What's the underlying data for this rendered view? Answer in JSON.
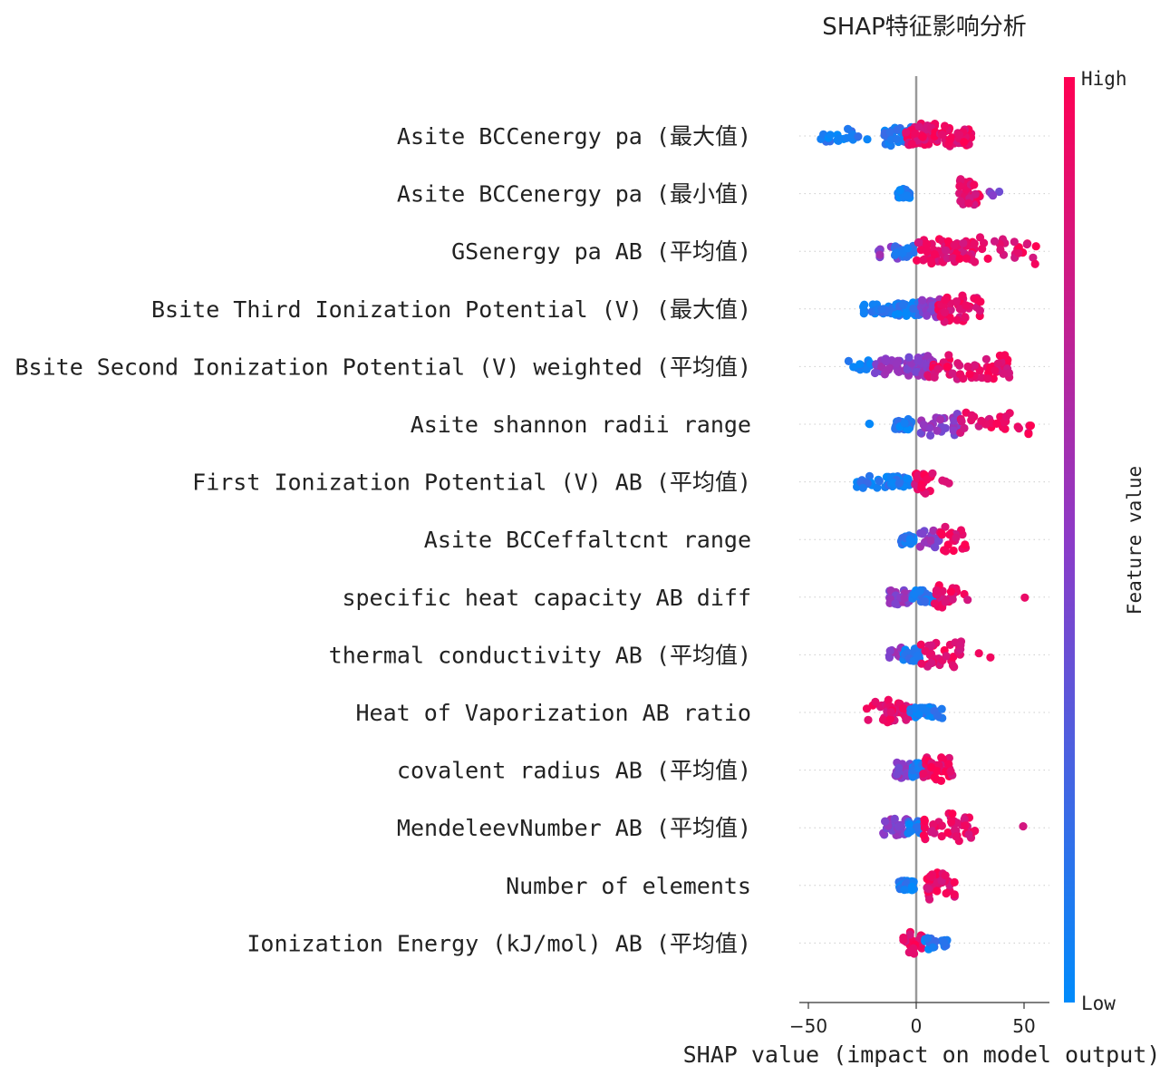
{
  "chart_data": {
    "type": "scatter",
    "subtype": "shap-beeswarm",
    "title": "SHAP特征影响分析",
    "xlabel": "SHAP value (impact on model output)",
    "xlim": [
      -52,
      61
    ],
    "xticks": [
      -50,
      0,
      50
    ],
    "xtick_labels": [
      "−50",
      "0",
      "50"
    ],
    "zero_line": true,
    "colorbar": {
      "label": "Feature value",
      "high_label": "High",
      "low_label": "Low",
      "low_color": "#008bfb",
      "high_color": "#ff0052"
    },
    "features": [
      {
        "name": "Asite BCCenergy pa (最大值)",
        "clusters": [
          [
            -47,
            -22,
            "low",
            0.35,
            20
          ],
          [
            -16,
            -1,
            "low",
            0.55,
            30
          ],
          [
            -5,
            10,
            "high",
            0.85,
            55
          ],
          [
            11,
            26,
            "high",
            0.8,
            40
          ]
        ]
      },
      {
        "name": "Asite BCCenergy pa (最小值)",
        "clusters": [
          [
            -9,
            -3,
            "low",
            0.1,
            24
          ],
          [
            20,
            30,
            "high",
            0.95,
            30
          ],
          [
            33,
            39,
            "mid",
            0.55,
            4
          ]
        ]
      },
      {
        "name": "GSenergy pa AB (平均值)",
        "clusters": [
          [
            -19,
            -8,
            "mid",
            0.45,
            10
          ],
          [
            -10,
            -1,
            "low",
            0.25,
            30
          ],
          [
            0,
            28,
            "high",
            0.8,
            70
          ],
          [
            28,
            56,
            "high",
            0.92,
            22
          ]
        ]
      },
      {
        "name": "Bsite Third Ionization Potential (V) (最大值)",
        "clusters": [
          [
            -26,
            -10,
            "low",
            0.12,
            30
          ],
          [
            -10,
            2,
            "low",
            0.35,
            50
          ],
          [
            2,
            12,
            "mid",
            0.6,
            30
          ],
          [
            10,
            30,
            "high",
            0.85,
            45
          ]
        ]
      },
      {
        "name": "Bsite Second Ionization Potential (V) weighted (平均值)",
        "clusters": [
          [
            -33,
            -20,
            "low",
            0.2,
            12
          ],
          [
            -20,
            -5,
            "mid",
            0.4,
            28
          ],
          [
            -5,
            8,
            "mid",
            0.6,
            45
          ],
          [
            5,
            44,
            "high",
            0.85,
            60
          ]
        ]
      },
      {
        "name": "Asite shannon radii range",
        "clusters": [
          [
            -22,
            -18,
            "low",
            0.1,
            2
          ],
          [
            -10,
            -2,
            "low",
            0.15,
            30
          ],
          [
            2,
            20,
            "mid",
            0.65,
            30
          ],
          [
            20,
            54,
            "high",
            0.9,
            30
          ]
        ]
      },
      {
        "name": "First Ionization Potential (V) AB (平均值)",
        "clusters": [
          [
            -30,
            -14,
            "low",
            0.3,
            20
          ],
          [
            -14,
            -2,
            "low",
            0.15,
            28
          ],
          [
            -1,
            8,
            "high",
            0.75,
            30
          ],
          [
            12,
            16,
            "high",
            0.9,
            3
          ]
        ]
      },
      {
        "name": "Asite BCCeffaltcnt range",
        "clusters": [
          [
            -7,
            -1,
            "low",
            0.1,
            28
          ],
          [
            1,
            11,
            "mid",
            0.6,
            18
          ],
          [
            11,
            23,
            "high",
            0.9,
            20
          ]
        ]
      },
      {
        "name": "specific heat capacity AB diff",
        "clusters": [
          [
            -13,
            -2,
            "mid",
            0.45,
            30
          ],
          [
            -2,
            10,
            "low",
            0.3,
            28
          ],
          [
            8,
            19,
            "high",
            0.85,
            25
          ],
          [
            22,
            26,
            "high",
            0.9,
            2
          ],
          [
            50,
            51,
            "high",
            0.95,
            1
          ]
        ]
      },
      {
        "name": "thermal conductivity AB (平均值)",
        "clusters": [
          [
            -13,
            -4,
            "mid",
            0.45,
            12
          ],
          [
            -6,
            2,
            "low",
            0.25,
            30
          ],
          [
            2,
            24,
            "high",
            0.85,
            35
          ],
          [
            29,
            37,
            "high",
            0.95,
            2
          ]
        ]
      },
      {
        "name": "Heat of Vaporization AB ratio",
        "clusters": [
          [
            -23,
            -12,
            "high",
            0.85,
            18
          ],
          [
            -12,
            -2,
            "high",
            0.7,
            30
          ],
          [
            -3,
            8,
            "low",
            0.2,
            35
          ],
          [
            8,
            14,
            "low",
            0.25,
            6
          ]
        ]
      },
      {
        "name": "covalent radius AB (平均值)",
        "clusters": [
          [
            -10,
            -2,
            "mid",
            0.4,
            28
          ],
          [
            -2,
            5,
            "low",
            0.35,
            25
          ],
          [
            3,
            17,
            "high",
            0.85,
            35
          ]
        ]
      },
      {
        "name": "MendeleevNumber AB (平均值)",
        "clusters": [
          [
            -16,
            -3,
            "mid",
            0.45,
            30
          ],
          [
            -4,
            2,
            "low",
            0.3,
            20
          ],
          [
            3,
            29,
            "high",
            0.9,
            45
          ],
          [
            49,
            50,
            "high",
            0.95,
            1
          ]
        ]
      },
      {
        "name": "Number of elements",
        "clusters": [
          [
            -8,
            -1,
            "low",
            0.1,
            40
          ],
          [
            5,
            18,
            "high",
            0.95,
            40
          ]
        ]
      },
      {
        "name": "Ionization Energy (kJ/mol) AB (平均值)",
        "clusters": [
          [
            -6,
            3,
            "high",
            0.7,
            24
          ],
          [
            4,
            15,
            "low",
            0.3,
            22
          ]
        ]
      }
    ]
  }
}
